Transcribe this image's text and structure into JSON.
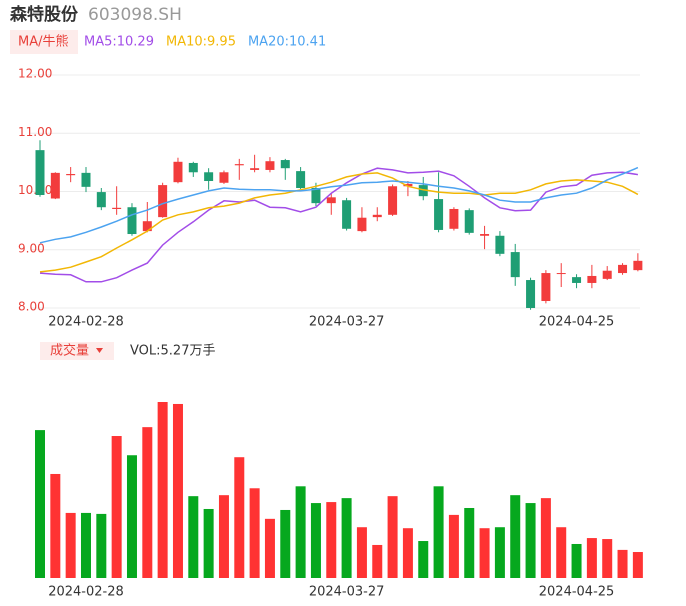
{
  "header": {
    "name": "森特股份",
    "code": "603098.SH"
  },
  "chart_data": [
    {
      "type": "candlestick",
      "legend_tag": "MA/牛熊",
      "categories": [
        null,
        null,
        null,
        "2024-02-28",
        null,
        null,
        null,
        null,
        null,
        null,
        null,
        null,
        null,
        null,
        null,
        null,
        null,
        null,
        null,
        null,
        "2024-03-27",
        null,
        null,
        null,
        null,
        null,
        null,
        null,
        null,
        null,
        null,
        null,
        null,
        null,
        null,
        "2024-04-25",
        null,
        null,
        null,
        null
      ],
      "open": [
        10.71,
        9.88,
        10.28,
        10.32,
        9.99,
        9.7,
        9.73,
        9.32,
        9.56,
        10.16,
        10.49,
        10.33,
        10.15,
        10.45,
        10.37,
        10.37,
        10.54,
        10.35,
        10.06,
        9.8,
        9.85,
        9.32,
        9.56,
        9.6,
        10.09,
        10.11,
        9.87,
        9.36,
        9.68,
        9.24,
        9.24,
        8.96,
        8.48,
        8.12,
        8.59,
        8.53,
        8.43,
        8.5,
        8.6,
        8.65
      ],
      "close": [
        9.94,
        10.32,
        10.3,
        10.08,
        9.73,
        9.72,
        9.27,
        9.49,
        10.11,
        10.51,
        10.33,
        10.18,
        10.33,
        10.47,
        10.4,
        10.52,
        10.4,
        10.06,
        9.8,
        9.9,
        9.36,
        9.55,
        9.6,
        10.09,
        10.13,
        9.92,
        9.34,
        9.7,
        9.29,
        9.27,
        8.93,
        8.53,
        8.0,
        8.6,
        8.6,
        8.43,
        8.55,
        8.64,
        8.74,
        8.81
      ],
      "high": [
        10.88,
        10.33,
        10.42,
        10.42,
        10.06,
        10.09,
        9.8,
        9.82,
        10.15,
        10.58,
        10.51,
        10.4,
        10.36,
        10.56,
        10.63,
        10.59,
        10.56,
        10.42,
        10.15,
        9.97,
        9.89,
        9.73,
        9.73,
        10.12,
        10.18,
        10.25,
        10.33,
        9.73,
        9.71,
        9.41,
        9.32,
        9.1,
        8.52,
        8.65,
        8.77,
        8.58,
        8.74,
        8.72,
        8.77,
        8.94
      ],
      "low": [
        9.91,
        9.87,
        10.16,
        9.99,
        9.68,
        9.6,
        9.24,
        9.3,
        9.55,
        10.14,
        10.25,
        10.03,
        10.13,
        10.2,
        10.33,
        10.33,
        10.2,
        10.04,
        9.75,
        9.6,
        9.33,
        9.3,
        9.49,
        9.58,
        9.92,
        9.85,
        9.3,
        9.33,
        9.26,
        9.01,
        8.89,
        8.38,
        7.97,
        8.08,
        8.36,
        8.34,
        8.34,
        8.48,
        8.57,
        8.63
      ],
      "up_color": "#f23c3c",
      "down_color": "#1f9e74",
      "series": [
        {
          "name": "MA5:10.29",
          "color": "#a24de8",
          "values": [
            8.6,
            8.58,
            8.57,
            8.45,
            8.45,
            8.52,
            8.65,
            8.77,
            9.08,
            9.3,
            9.48,
            9.68,
            9.84,
            9.82,
            9.85,
            9.73,
            9.72,
            9.65,
            9.73,
            9.97,
            10.15,
            10.3,
            10.4,
            10.37,
            10.32,
            10.33,
            10.35,
            10.27,
            10.09,
            9.89,
            9.72,
            9.67,
            9.68,
            9.99,
            10.08,
            10.11,
            10.28,
            10.32,
            10.33,
            10.29
          ]
        },
        {
          "name": "MA10:9.95",
          "color": "#f2b705",
          "values": [
            8.62,
            8.65,
            8.7,
            8.79,
            8.88,
            9.03,
            9.17,
            9.32,
            9.51,
            9.6,
            9.65,
            9.72,
            9.75,
            9.8,
            9.89,
            9.94,
            9.97,
            10.03,
            10.09,
            10.16,
            10.25,
            10.3,
            10.32,
            10.23,
            10.09,
            10.03,
            9.99,
            9.97,
            9.97,
            9.94,
            9.97,
            9.97,
            10.03,
            10.13,
            10.18,
            10.2,
            10.18,
            10.16,
            10.09,
            9.95
          ]
        },
        {
          "name": "MA20:10.41",
          "color": "#4ca3f0",
          "values": [
            9.12,
            9.18,
            9.22,
            9.3,
            9.39,
            9.49,
            9.6,
            9.68,
            9.79,
            9.87,
            9.94,
            10.01,
            10.06,
            10.04,
            10.03,
            10.03,
            10.01,
            10.01,
            10.04,
            10.08,
            10.11,
            10.15,
            10.16,
            10.18,
            10.16,
            10.13,
            10.09,
            10.06,
            10.01,
            9.94,
            9.85,
            9.82,
            9.82,
            9.89,
            9.94,
            9.97,
            10.06,
            10.2,
            10.3,
            10.41
          ]
        }
      ],
      "ylim": [
        8,
        12
      ],
      "yticks": [
        {
          "value": 8,
          "label": "8.00"
        },
        {
          "value": 9,
          "label": "9.00"
        },
        {
          "value": 10,
          "label": "10.00"
        },
        {
          "value": 11,
          "label": "11.00"
        },
        {
          "value": 12,
          "label": "12.00"
        }
      ],
      "grid": true
    },
    {
      "type": "bar",
      "legend_tag": "成交量",
      "series": [
        {
          "name": "VOL:5.27万手",
          "up_color": "#ff3333",
          "down_color": "#06a81e",
          "values": [
            30.0,
            21.1,
            13.2,
            13.2,
            13.0,
            28.8,
            24.9,
            30.6,
            35.7,
            35.3,
            16.6,
            14.0,
            16.8,
            24.5,
            18.2,
            12.0,
            13.8,
            18.6,
            15.2,
            15.4,
            16.2,
            10.3,
            6.7,
            16.6,
            10.1,
            7.5,
            18.6,
            12.8,
            14.2,
            10.1,
            10.3,
            16.8,
            15.2,
            16.2,
            10.3,
            6.9,
            8.1,
            7.9,
            5.7,
            5.27
          ]
        }
      ]
    }
  ]
}
